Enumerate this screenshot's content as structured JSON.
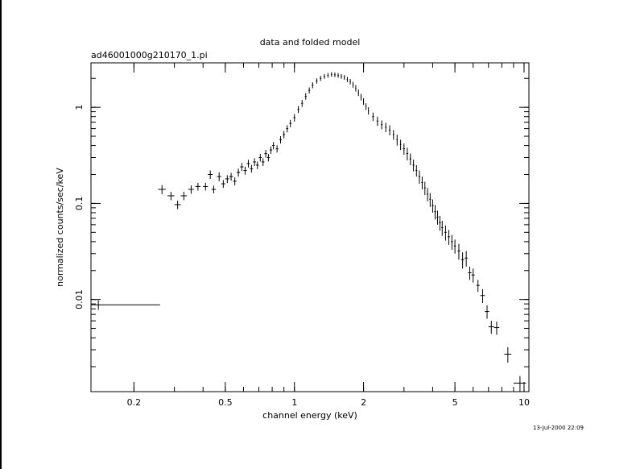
{
  "window": {
    "timestamp": "13-Jul-2000 22:09"
  },
  "chart_data": {
    "type": "scatter",
    "title": "data and folded model",
    "subtitle": "ad46001000g210170_1.pi",
    "xlabel": "channel energy (keV)",
    "ylabel": "normalized counts/sec/keV",
    "xscale": "log",
    "yscale": "log",
    "xlim": [
      0.13,
      10.5
    ],
    "ylim": [
      0.0011,
      2.9
    ],
    "x_ticks": [
      {
        "value": 0.2,
        "label": "0.2"
      },
      {
        "value": 0.5,
        "label": "0.5"
      },
      {
        "value": 1,
        "label": "1"
      },
      {
        "value": 2,
        "label": "2"
      },
      {
        "value": 5,
        "label": "5"
      },
      {
        "value": 10,
        "label": "10"
      }
    ],
    "y_ticks": [
      {
        "value": 1,
        "label": "1"
      },
      {
        "value": 0.1,
        "label": "0.1"
      },
      {
        "value": 0.01,
        "label": "0.01"
      }
    ],
    "grid": false,
    "error_bar_points": [
      {
        "x": 0.14,
        "y": 0.0088,
        "xlo": 0.13,
        "xhi": 0.26,
        "ylo": 0.0078,
        "yhi": 0.0098
      },
      {
        "x": 0.265,
        "y": 0.14,
        "xlo": 0.255,
        "xhi": 0.275,
        "ylo": 0.125,
        "yhi": 0.155
      },
      {
        "x": 0.29,
        "y": 0.12,
        "xlo": 0.28,
        "xhi": 0.3,
        "ylo": 0.108,
        "yhi": 0.132
      },
      {
        "x": 0.31,
        "y": 0.097,
        "xlo": 0.3,
        "xhi": 0.32,
        "ylo": 0.087,
        "yhi": 0.107
      },
      {
        "x": 0.33,
        "y": 0.12,
        "xlo": 0.32,
        "xhi": 0.34,
        "ylo": 0.108,
        "yhi": 0.132
      },
      {
        "x": 0.355,
        "y": 0.14,
        "xlo": 0.345,
        "xhi": 0.365,
        "ylo": 0.126,
        "yhi": 0.154
      },
      {
        "x": 0.38,
        "y": 0.15,
        "xlo": 0.37,
        "xhi": 0.39,
        "ylo": 0.136,
        "yhi": 0.164
      },
      {
        "x": 0.41,
        "y": 0.15,
        "xlo": 0.4,
        "xhi": 0.42,
        "ylo": 0.136,
        "yhi": 0.164
      },
      {
        "x": 0.43,
        "y": 0.2,
        "xlo": 0.42,
        "xhi": 0.44,
        "ylo": 0.18,
        "yhi": 0.22
      },
      {
        "x": 0.445,
        "y": 0.14,
        "xlo": 0.435,
        "xhi": 0.455,
        "ylo": 0.127,
        "yhi": 0.153
      },
      {
        "x": 0.47,
        "y": 0.19,
        "xlo": 0.46,
        "xhi": 0.48,
        "ylo": 0.17,
        "yhi": 0.21
      },
      {
        "x": 0.49,
        "y": 0.16,
        "xlo": 0.48,
        "xhi": 0.5,
        "ylo": 0.145,
        "yhi": 0.175
      },
      {
        "x": 0.51,
        "y": 0.18,
        "xlo": 0.5,
        "xhi": 0.52,
        "ylo": 0.163,
        "yhi": 0.197
      },
      {
        "x": 0.53,
        "y": 0.19,
        "xlo": 0.52,
        "xhi": 0.54,
        "ylo": 0.172,
        "yhi": 0.208
      },
      {
        "x": 0.55,
        "y": 0.17,
        "xlo": 0.54,
        "xhi": 0.56,
        "ylo": 0.154,
        "yhi": 0.186
      },
      {
        "x": 0.57,
        "y": 0.21,
        "xlo": 0.56,
        "xhi": 0.58,
        "ylo": 0.19,
        "yhi": 0.23
      },
      {
        "x": 0.59,
        "y": 0.24,
        "xlo": 0.58,
        "xhi": 0.6,
        "ylo": 0.217,
        "yhi": 0.263
      },
      {
        "x": 0.61,
        "y": 0.22,
        "xlo": 0.6,
        "xhi": 0.62,
        "ylo": 0.199,
        "yhi": 0.241
      },
      {
        "x": 0.63,
        "y": 0.26,
        "xlo": 0.62,
        "xhi": 0.64,
        "ylo": 0.236,
        "yhi": 0.284
      },
      {
        "x": 0.65,
        "y": 0.23,
        "xlo": 0.64,
        "xhi": 0.66,
        "ylo": 0.209,
        "yhi": 0.251
      },
      {
        "x": 0.67,
        "y": 0.27,
        "xlo": 0.66,
        "xhi": 0.68,
        "ylo": 0.245,
        "yhi": 0.295
      },
      {
        "x": 0.69,
        "y": 0.25,
        "xlo": 0.68,
        "xhi": 0.7,
        "ylo": 0.227,
        "yhi": 0.273
      },
      {
        "x": 0.71,
        "y": 0.3,
        "xlo": 0.7,
        "xhi": 0.72,
        "ylo": 0.273,
        "yhi": 0.327
      },
      {
        "x": 0.73,
        "y": 0.27,
        "xlo": 0.72,
        "xhi": 0.74,
        "ylo": 0.245,
        "yhi": 0.295
      },
      {
        "x": 0.75,
        "y": 0.33,
        "xlo": 0.74,
        "xhi": 0.76,
        "ylo": 0.3,
        "yhi": 0.36
      },
      {
        "x": 0.77,
        "y": 0.3,
        "xlo": 0.76,
        "xhi": 0.78,
        "ylo": 0.273,
        "yhi": 0.327
      },
      {
        "x": 0.79,
        "y": 0.36,
        "xlo": 0.78,
        "xhi": 0.8,
        "ylo": 0.328,
        "yhi": 0.392
      },
      {
        "x": 0.81,
        "y": 0.4,
        "xlo": 0.8,
        "xhi": 0.82,
        "ylo": 0.365,
        "yhi": 0.435
      },
      {
        "x": 0.84,
        "y": 0.37,
        "xlo": 0.83,
        "xhi": 0.85,
        "ylo": 0.338,
        "yhi": 0.402
      },
      {
        "x": 0.87,
        "y": 0.46,
        "xlo": 0.86,
        "xhi": 0.88,
        "ylo": 0.42,
        "yhi": 0.5
      },
      {
        "x": 0.9,
        "y": 0.52,
        "xlo": 0.89,
        "xhi": 0.91,
        "ylo": 0.475,
        "yhi": 0.565
      },
      {
        "x": 0.93,
        "y": 0.6,
        "xlo": 0.92,
        "xhi": 0.94,
        "ylo": 0.548,
        "yhi": 0.652
      },
      {
        "x": 0.96,
        "y": 0.68,
        "xlo": 0.95,
        "xhi": 0.97,
        "ylo": 0.62,
        "yhi": 0.74
      },
      {
        "x": 1.0,
        "y": 0.78,
        "xlo": 0.99,
        "xhi": 1.01,
        "ylo": 0.71,
        "yhi": 0.85
      },
      {
        "x": 1.04,
        "y": 0.95,
        "xlo": 1.03,
        "xhi": 1.05,
        "ylo": 0.87,
        "yhi": 1.03
      },
      {
        "x": 1.08,
        "y": 1.1,
        "xlo": 1.07,
        "xhi": 1.09,
        "ylo": 1.01,
        "yhi": 1.19
      },
      {
        "x": 1.12,
        "y": 1.3,
        "xlo": 1.11,
        "xhi": 1.13,
        "ylo": 1.2,
        "yhi": 1.4
      },
      {
        "x": 1.16,
        "y": 1.5,
        "xlo": 1.15,
        "xhi": 1.17,
        "ylo": 1.39,
        "yhi": 1.61
      },
      {
        "x": 1.2,
        "y": 1.7,
        "xlo": 1.19,
        "xhi": 1.21,
        "ylo": 1.58,
        "yhi": 1.82
      },
      {
        "x": 1.25,
        "y": 1.88,
        "xlo": 1.24,
        "xhi": 1.26,
        "ylo": 1.76,
        "yhi": 2.0
      },
      {
        "x": 1.3,
        "y": 2.0,
        "xlo": 1.29,
        "xhi": 1.31,
        "ylo": 1.88,
        "yhi": 2.12
      },
      {
        "x": 1.35,
        "y": 2.1,
        "xlo": 1.34,
        "xhi": 1.36,
        "ylo": 1.98,
        "yhi": 2.22
      },
      {
        "x": 1.4,
        "y": 2.15,
        "xlo": 1.39,
        "xhi": 1.41,
        "ylo": 2.03,
        "yhi": 2.27
      },
      {
        "x": 1.45,
        "y": 2.2,
        "xlo": 1.44,
        "xhi": 1.46,
        "ylo": 2.08,
        "yhi": 2.32
      },
      {
        "x": 1.5,
        "y": 2.18,
        "xlo": 1.49,
        "xhi": 1.51,
        "ylo": 2.06,
        "yhi": 2.3
      },
      {
        "x": 1.55,
        "y": 2.15,
        "xlo": 1.54,
        "xhi": 1.56,
        "ylo": 2.03,
        "yhi": 2.27
      },
      {
        "x": 1.6,
        "y": 2.1,
        "xlo": 1.59,
        "xhi": 1.61,
        "ylo": 1.98,
        "yhi": 2.22
      },
      {
        "x": 1.65,
        "y": 2.05,
        "xlo": 1.64,
        "xhi": 1.66,
        "ylo": 1.93,
        "yhi": 2.17
      },
      {
        "x": 1.7,
        "y": 1.95,
        "xlo": 1.69,
        "xhi": 1.71,
        "ylo": 1.83,
        "yhi": 2.07
      },
      {
        "x": 1.75,
        "y": 1.85,
        "xlo": 1.74,
        "xhi": 1.76,
        "ylo": 1.73,
        "yhi": 1.97
      },
      {
        "x": 1.8,
        "y": 1.72,
        "xlo": 1.79,
        "xhi": 1.81,
        "ylo": 1.6,
        "yhi": 1.84
      },
      {
        "x": 1.85,
        "y": 1.58,
        "xlo": 1.84,
        "xhi": 1.86,
        "ylo": 1.46,
        "yhi": 1.7
      },
      {
        "x": 1.9,
        "y": 1.42,
        "xlo": 1.89,
        "xhi": 1.91,
        "ylo": 1.31,
        "yhi": 1.53
      },
      {
        "x": 1.95,
        "y": 1.28,
        "xlo": 1.94,
        "xhi": 1.96,
        "ylo": 1.18,
        "yhi": 1.38
      },
      {
        "x": 2.0,
        "y": 1.15,
        "xlo": 1.99,
        "xhi": 2.01,
        "ylo": 1.06,
        "yhi": 1.24
      },
      {
        "x": 2.05,
        "y": 1.02,
        "xlo": 2.04,
        "xhi": 2.06,
        "ylo": 0.94,
        "yhi": 1.1
      },
      {
        "x": 2.1,
        "y": 0.92,
        "xlo": 2.09,
        "xhi": 2.11,
        "ylo": 0.84,
        "yhi": 1.0
      },
      {
        "x": 2.2,
        "y": 0.8,
        "xlo": 2.18,
        "xhi": 2.22,
        "ylo": 0.72,
        "yhi": 0.88
      },
      {
        "x": 2.3,
        "y": 0.72,
        "xlo": 2.28,
        "xhi": 2.32,
        "ylo": 0.64,
        "yhi": 0.8
      },
      {
        "x": 2.4,
        "y": 0.66,
        "xlo": 2.38,
        "xhi": 2.42,
        "ylo": 0.59,
        "yhi": 0.73
      },
      {
        "x": 2.5,
        "y": 0.62,
        "xlo": 2.48,
        "xhi": 2.52,
        "ylo": 0.55,
        "yhi": 0.69
      },
      {
        "x": 2.6,
        "y": 0.58,
        "xlo": 2.58,
        "xhi": 2.62,
        "ylo": 0.51,
        "yhi": 0.65
      },
      {
        "x": 2.7,
        "y": 0.52,
        "xlo": 2.68,
        "xhi": 2.72,
        "ylo": 0.46,
        "yhi": 0.58
      },
      {
        "x": 2.8,
        "y": 0.46,
        "xlo": 2.78,
        "xhi": 2.82,
        "ylo": 0.4,
        "yhi": 0.52
      },
      {
        "x": 2.9,
        "y": 0.41,
        "xlo": 2.88,
        "xhi": 2.92,
        "ylo": 0.36,
        "yhi": 0.46
      },
      {
        "x": 3.0,
        "y": 0.37,
        "xlo": 2.97,
        "xhi": 3.03,
        "ylo": 0.32,
        "yhi": 0.42
      },
      {
        "x": 3.1,
        "y": 0.33,
        "xlo": 3.07,
        "xhi": 3.13,
        "ylo": 0.28,
        "yhi": 0.38
      },
      {
        "x": 3.2,
        "y": 0.29,
        "xlo": 3.17,
        "xhi": 3.23,
        "ylo": 0.25,
        "yhi": 0.33
      },
      {
        "x": 3.3,
        "y": 0.25,
        "xlo": 3.27,
        "xhi": 3.33,
        "ylo": 0.215,
        "yhi": 0.285
      },
      {
        "x": 3.4,
        "y": 0.22,
        "xlo": 3.37,
        "xhi": 3.43,
        "ylo": 0.19,
        "yhi": 0.25
      },
      {
        "x": 3.5,
        "y": 0.19,
        "xlo": 3.47,
        "xhi": 3.53,
        "ylo": 0.16,
        "yhi": 0.22
      },
      {
        "x": 3.6,
        "y": 0.165,
        "xlo": 3.57,
        "xhi": 3.63,
        "ylo": 0.14,
        "yhi": 0.19
      },
      {
        "x": 3.7,
        "y": 0.145,
        "xlo": 3.67,
        "xhi": 3.73,
        "ylo": 0.122,
        "yhi": 0.168
      },
      {
        "x": 3.8,
        "y": 0.125,
        "xlo": 3.77,
        "xhi": 3.83,
        "ylo": 0.105,
        "yhi": 0.145
      },
      {
        "x": 3.9,
        "y": 0.11,
        "xlo": 3.87,
        "xhi": 3.93,
        "ylo": 0.092,
        "yhi": 0.128
      },
      {
        "x": 4.0,
        "y": 0.095,
        "xlo": 3.96,
        "xhi": 4.04,
        "ylo": 0.08,
        "yhi": 0.11
      },
      {
        "x": 4.1,
        "y": 0.082,
        "xlo": 4.06,
        "xhi": 4.14,
        "ylo": 0.068,
        "yhi": 0.096
      },
      {
        "x": 4.2,
        "y": 0.072,
        "xlo": 4.16,
        "xhi": 4.24,
        "ylo": 0.06,
        "yhi": 0.084
      },
      {
        "x": 4.3,
        "y": 0.063,
        "xlo": 4.26,
        "xhi": 4.34,
        "ylo": 0.052,
        "yhi": 0.074
      },
      {
        "x": 4.4,
        "y": 0.056,
        "xlo": 4.36,
        "xhi": 4.44,
        "ylo": 0.046,
        "yhi": 0.066
      },
      {
        "x": 4.55,
        "y": 0.05,
        "xlo": 4.5,
        "xhi": 4.6,
        "ylo": 0.041,
        "yhi": 0.059
      },
      {
        "x": 4.7,
        "y": 0.045,
        "xlo": 4.65,
        "xhi": 4.75,
        "ylo": 0.037,
        "yhi": 0.053
      },
      {
        "x": 4.85,
        "y": 0.04,
        "xlo": 4.8,
        "xhi": 4.9,
        "ylo": 0.033,
        "yhi": 0.047
      },
      {
        "x": 5.0,
        "y": 0.036,
        "xlo": 4.95,
        "xhi": 5.05,
        "ylo": 0.03,
        "yhi": 0.042
      },
      {
        "x": 5.2,
        "y": 0.032,
        "xlo": 5.13,
        "xhi": 5.27,
        "ylo": 0.026,
        "yhi": 0.038
      },
      {
        "x": 5.4,
        "y": 0.026,
        "xlo": 5.32,
        "xhi": 5.48,
        "ylo": 0.021,
        "yhi": 0.031
      },
      {
        "x": 5.6,
        "y": 0.027,
        "xlo": 5.52,
        "xhi": 5.68,
        "ylo": 0.022,
        "yhi": 0.032
      },
      {
        "x": 5.8,
        "y": 0.019,
        "xlo": 5.7,
        "xhi": 5.9,
        "ylo": 0.016,
        "yhi": 0.022
      },
      {
        "x": 6.0,
        "y": 0.018,
        "xlo": 5.9,
        "xhi": 6.1,
        "ylo": 0.015,
        "yhi": 0.021
      },
      {
        "x": 6.3,
        "y": 0.014,
        "xlo": 6.2,
        "xhi": 6.4,
        "ylo": 0.012,
        "yhi": 0.016
      },
      {
        "x": 6.6,
        "y": 0.011,
        "xlo": 6.45,
        "xhi": 6.75,
        "ylo": 0.0092,
        "yhi": 0.0128
      },
      {
        "x": 6.9,
        "y": 0.0075,
        "xlo": 6.75,
        "xhi": 7.05,
        "ylo": 0.0063,
        "yhi": 0.0087
      },
      {
        "x": 7.2,
        "y": 0.0052,
        "xlo": 7.0,
        "xhi": 7.4,
        "ylo": 0.0044,
        "yhi": 0.006
      },
      {
        "x": 7.6,
        "y": 0.0051,
        "xlo": 7.4,
        "xhi": 7.8,
        "ylo": 0.0043,
        "yhi": 0.0059
      },
      {
        "x": 8.5,
        "y": 0.0027,
        "xlo": 8.2,
        "xhi": 8.8,
        "ylo": 0.0022,
        "yhi": 0.0032
      },
      {
        "x": 9.6,
        "y": 0.00135,
        "xlo": 9.0,
        "xhi": 10.2,
        "ylo": 0.0011,
        "yhi": 0.0016
      }
    ]
  }
}
